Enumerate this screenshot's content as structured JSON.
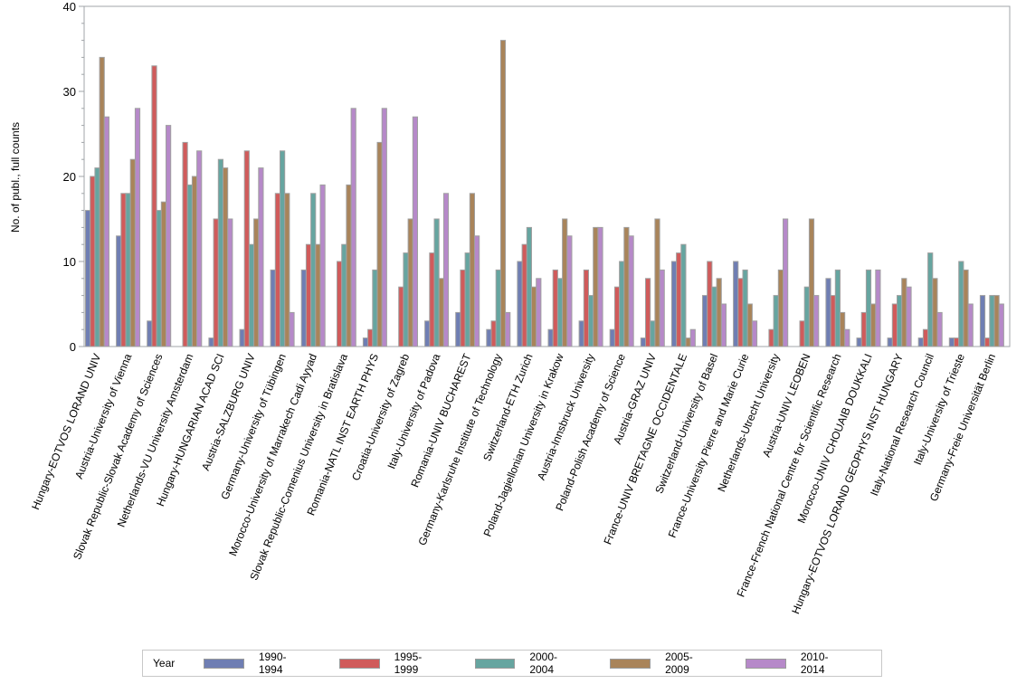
{
  "chart_data": {
    "type": "bar",
    "title": "",
    "xlabel": "",
    "ylabel": "No. of publ., full counts",
    "ylim": [
      0,
      40
    ],
    "yticks": [
      0,
      10,
      20,
      30,
      40
    ],
    "ytick_labels": [
      "0",
      "10",
      "20",
      "30",
      "40"
    ],
    "y_minor_step": 2,
    "grid": false,
    "legend": {
      "title": "Year",
      "position": "bottom"
    },
    "categories": [
      "Hungary-EOTVOS LORAND UNIV",
      "Austria-University of Vienna",
      "Slovak Republic-Slovak Academy of Sciences",
      "Netherlands-VU University Amsterdam",
      "Hungary-HUNGARIAN ACAD SCI",
      "Austria-SALZBURG UNIV",
      "Germany-University of Tübingen",
      "Morocco-University of Marrakech Cadi Ayyad",
      "Slovak Republic-Comenius University in Bratislava",
      "Romania-NATL INST EARTH PHYS",
      "Croatia-University of Zagreb",
      "Italy-University of Padova",
      "Romania-UNIV BUCHAREST",
      "Germany-Karlsruhe Institute of Technology",
      "Switzerland-ETH Zurich",
      "Poland-Jagiellonian University in Krakow",
      "Austria-Innsbruck University",
      "Poland-Polish Academy of Science",
      "Austria-GRAZ UNIV",
      "France-UNIV BRETAGNE OCCIDENTALE",
      "Switzerland-University of Basel",
      "France-University Pierre and Marie Curie",
      "Netherlands-Utrecht University",
      "Austria-UNIV LEOBEN",
      "France-French National Centre for Scientific Research",
      "Morocco-UNIV CHOUAIB DOUKKALI",
      "Hungary-EOTVOS LORAND GEOPHYS INST HUNGARY",
      "Italy-National Research Council",
      "Italy-University of Trieste",
      "Germany-Freie Universität Berlin"
    ],
    "series": [
      {
        "name": "1990-1994",
        "color": "#6f7eb3",
        "values": [
          16,
          13,
          3,
          0,
          1,
          2,
          9,
          9,
          0,
          1,
          0,
          3,
          4,
          2,
          10,
          2,
          3,
          2,
          1,
          10,
          6,
          10,
          0,
          0,
          8,
          1,
          1,
          1,
          1,
          6
        ]
      },
      {
        "name": "1995-1999",
        "color": "#d05b5b",
        "values": [
          20,
          18,
          33,
          24,
          15,
          23,
          18,
          12,
          10,
          2,
          7,
          11,
          9,
          3,
          12,
          9,
          9,
          7,
          8,
          11,
          10,
          8,
          2,
          3,
          6,
          4,
          5,
          2,
          1,
          1
        ]
      },
      {
        "name": "2000-2004",
        "color": "#66a5a0",
        "values": [
          21,
          18,
          16,
          19,
          22,
          12,
          23,
          18,
          12,
          9,
          11,
          15,
          11,
          9,
          14,
          8,
          6,
          10,
          3,
          12,
          7,
          9,
          6,
          7,
          9,
          9,
          6,
          11,
          10,
          6
        ]
      },
      {
        "name": "2005-2009",
        "color": "#a9845a",
        "values": [
          34,
          22,
          17,
          20,
          21,
          15,
          18,
          12,
          19,
          24,
          15,
          8,
          18,
          36,
          7,
          15,
          14,
          14,
          15,
          1,
          8,
          5,
          9,
          15,
          4,
          5,
          8,
          8,
          9,
          6
        ]
      },
      {
        "name": "2010-2014",
        "color": "#b689c9",
        "values": [
          27,
          28,
          26,
          23,
          15,
          21,
          4,
          19,
          28,
          28,
          27,
          18,
          13,
          4,
          8,
          13,
          14,
          13,
          9,
          2,
          5,
          3,
          15,
          6,
          2,
          9,
          7,
          4,
          5,
          5
        ]
      }
    ]
  },
  "legend": {
    "title": "Year",
    "items": [
      {
        "label": "1990-1994",
        "color": "#6f7eb3"
      },
      {
        "label": "1995-1999",
        "color": "#d05b5b"
      },
      {
        "label": "2000-2004",
        "color": "#66a5a0"
      },
      {
        "label": "2005-2009",
        "color": "#a9845a"
      },
      {
        "label": "2010-2014",
        "color": "#b689c9"
      }
    ]
  }
}
